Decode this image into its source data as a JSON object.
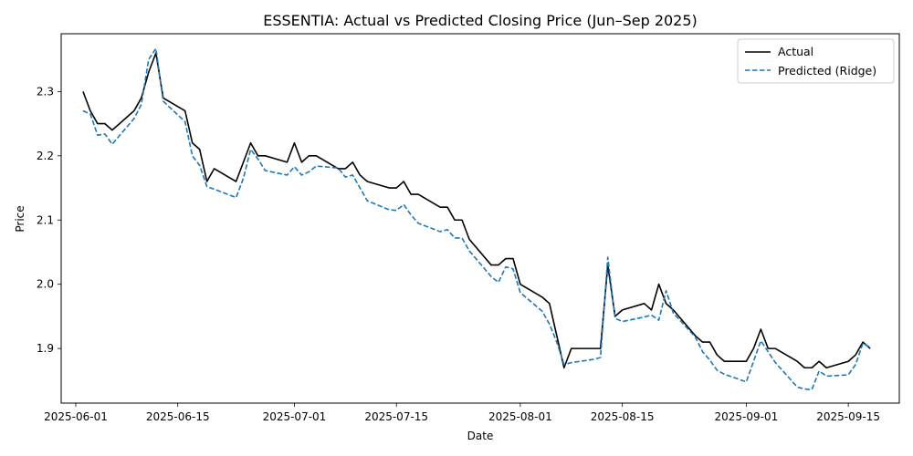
{
  "chart_data": {
    "type": "line",
    "title": "ESSENTIA: Actual vs Predicted Closing Price (Jun–Sep 2025)",
    "xlabel": "Date",
    "ylabel": "Price",
    "x_tick_labels": [
      "2025-06-01",
      "2025-06-15",
      "2025-07-01",
      "2025-07-15",
      "2025-08-01",
      "2025-08-15",
      "2025-09-01",
      "2025-09-15"
    ],
    "y_tick_labels": [
      "1.9",
      "2.0",
      "2.1",
      "2.2",
      "2.3"
    ],
    "ylim": [
      1.815,
      2.39
    ],
    "xlim": [
      "2025-05-30",
      "2025-09-22"
    ],
    "legend_position": "top-right",
    "colors": {
      "actual": "#000000",
      "predicted": "#1f77b4"
    },
    "series": [
      {
        "name": "Actual",
        "style": "solid",
        "points": [
          [
            "2025-06-02",
            2.3
          ],
          [
            "2025-06-03",
            2.27
          ],
          [
            "2025-06-04",
            2.25
          ],
          [
            "2025-06-05",
            2.25
          ],
          [
            "2025-06-06",
            2.24
          ],
          [
            "2025-06-09",
            2.27
          ],
          [
            "2025-06-10",
            2.29
          ],
          [
            "2025-06-11",
            2.33
          ],
          [
            "2025-06-12",
            2.36
          ],
          [
            "2025-06-13",
            2.29
          ],
          [
            "2025-06-16",
            2.27
          ],
          [
            "2025-06-17",
            2.22
          ],
          [
            "2025-06-18",
            2.21
          ],
          [
            "2025-06-19",
            2.16
          ],
          [
            "2025-06-20",
            2.18
          ],
          [
            "2025-06-23",
            2.16
          ],
          [
            "2025-06-24",
            2.19
          ],
          [
            "2025-06-25",
            2.22
          ],
          [
            "2025-06-26",
            2.2
          ],
          [
            "2025-06-27",
            2.2
          ],
          [
            "2025-06-30",
            2.19
          ],
          [
            "2025-07-01",
            2.22
          ],
          [
            "2025-07-02",
            2.19
          ],
          [
            "2025-07-03",
            2.2
          ],
          [
            "2025-07-04",
            2.2
          ],
          [
            "2025-07-07",
            2.18
          ],
          [
            "2025-07-08",
            2.18
          ],
          [
            "2025-07-09",
            2.19
          ],
          [
            "2025-07-10",
            2.17
          ],
          [
            "2025-07-11",
            2.16
          ],
          [
            "2025-07-14",
            2.15
          ],
          [
            "2025-07-15",
            2.15
          ],
          [
            "2025-07-16",
            2.16
          ],
          [
            "2025-07-17",
            2.14
          ],
          [
            "2025-07-18",
            2.14
          ],
          [
            "2025-07-21",
            2.12
          ],
          [
            "2025-07-22",
            2.12
          ],
          [
            "2025-07-23",
            2.1
          ],
          [
            "2025-07-24",
            2.1
          ],
          [
            "2025-07-25",
            2.07
          ],
          [
            "2025-07-28",
            2.03
          ],
          [
            "2025-07-29",
            2.03
          ],
          [
            "2025-07-30",
            2.04
          ],
          [
            "2025-07-31",
            2.04
          ],
          [
            "2025-08-01",
            2.0
          ],
          [
            "2025-08-04",
            1.98
          ],
          [
            "2025-08-05",
            1.97
          ],
          [
            "2025-08-06",
            1.92
          ],
          [
            "2025-08-07",
            1.87
          ],
          [
            "2025-08-08",
            1.9
          ],
          [
            "2025-08-11",
            1.9
          ],
          [
            "2025-08-12",
            1.9
          ],
          [
            "2025-08-13",
            2.03
          ],
          [
            "2025-08-14",
            1.95
          ],
          [
            "2025-08-15",
            1.96
          ],
          [
            "2025-08-18",
            1.97
          ],
          [
            "2025-08-19",
            1.96
          ],
          [
            "2025-08-20",
            2.0
          ],
          [
            "2025-08-21",
            1.97
          ],
          [
            "2025-08-22",
            1.96
          ],
          [
            "2025-08-25",
            1.92
          ],
          [
            "2025-08-26",
            1.91
          ],
          [
            "2025-08-27",
            1.91
          ],
          [
            "2025-08-28",
            1.89
          ],
          [
            "2025-08-29",
            1.88
          ],
          [
            "2025-09-01",
            1.88
          ],
          [
            "2025-09-02",
            1.9
          ],
          [
            "2025-09-03",
            1.93
          ],
          [
            "2025-09-04",
            1.9
          ],
          [
            "2025-09-05",
            1.9
          ],
          [
            "2025-09-08",
            1.88
          ],
          [
            "2025-09-09",
            1.87
          ],
          [
            "2025-09-10",
            1.87
          ],
          [
            "2025-09-11",
            1.88
          ],
          [
            "2025-09-12",
            1.87
          ],
          [
            "2025-09-15",
            1.88
          ],
          [
            "2025-09-16",
            1.89
          ],
          [
            "2025-09-17",
            1.91
          ],
          [
            "2025-09-18",
            1.9
          ]
        ]
      },
      {
        "name": "Predicted (Ridge)",
        "style": "dashed",
        "points": [
          [
            "2025-06-02",
            2.27
          ],
          [
            "2025-06-03",
            2.265
          ],
          [
            "2025-06-04",
            2.232
          ],
          [
            "2025-06-05",
            2.234
          ],
          [
            "2025-06-06",
            2.218
          ],
          [
            "2025-06-09",
            2.258
          ],
          [
            "2025-06-10",
            2.28
          ],
          [
            "2025-06-11",
            2.35
          ],
          [
            "2025-06-12",
            2.367
          ],
          [
            "2025-06-13",
            2.285
          ],
          [
            "2025-06-16",
            2.253
          ],
          [
            "2025-06-17",
            2.2
          ],
          [
            "2025-06-18",
            2.185
          ],
          [
            "2025-06-19",
            2.152
          ],
          [
            "2025-06-20",
            2.148
          ],
          [
            "2025-06-23",
            2.135
          ],
          [
            "2025-06-24",
            2.165
          ],
          [
            "2025-06-25",
            2.21
          ],
          [
            "2025-06-26",
            2.195
          ],
          [
            "2025-06-27",
            2.177
          ],
          [
            "2025-06-30",
            2.17
          ],
          [
            "2025-07-01",
            2.183
          ],
          [
            "2025-07-02",
            2.17
          ],
          [
            "2025-07-03",
            2.175
          ],
          [
            "2025-07-04",
            2.184
          ],
          [
            "2025-07-07",
            2.181
          ],
          [
            "2025-07-08",
            2.167
          ],
          [
            "2025-07-09",
            2.17
          ],
          [
            "2025-07-10",
            2.15
          ],
          [
            "2025-07-11",
            2.13
          ],
          [
            "2025-07-14",
            2.116
          ],
          [
            "2025-07-15",
            2.115
          ],
          [
            "2025-07-16",
            2.124
          ],
          [
            "2025-07-17",
            2.108
          ],
          [
            "2025-07-18",
            2.095
          ],
          [
            "2025-07-21",
            2.082
          ],
          [
            "2025-07-22",
            2.085
          ],
          [
            "2025-07-23",
            2.072
          ],
          [
            "2025-07-24",
            2.072
          ],
          [
            "2025-07-25",
            2.052
          ],
          [
            "2025-07-28",
            2.012
          ],
          [
            "2025-07-29",
            2.003
          ],
          [
            "2025-07-30",
            2.027
          ],
          [
            "2025-07-31",
            2.024
          ],
          [
            "2025-08-01",
            1.987
          ],
          [
            "2025-08-04",
            1.958
          ],
          [
            "2025-08-05",
            1.938
          ],
          [
            "2025-08-06",
            1.91
          ],
          [
            "2025-08-07",
            1.875
          ],
          [
            "2025-08-08",
            1.878
          ],
          [
            "2025-08-11",
            1.883
          ],
          [
            "2025-08-12",
            1.886
          ],
          [
            "2025-08-13",
            2.042
          ],
          [
            "2025-08-14",
            1.947
          ],
          [
            "2025-08-15",
            1.942
          ],
          [
            "2025-08-18",
            1.949
          ],
          [
            "2025-08-19",
            1.952
          ],
          [
            "2025-08-20",
            1.944
          ],
          [
            "2025-08-21",
            1.99
          ],
          [
            "2025-08-22",
            1.955
          ],
          [
            "2025-08-25",
            1.918
          ],
          [
            "2025-08-26",
            1.895
          ],
          [
            "2025-08-27",
            1.882
          ],
          [
            "2025-08-28",
            1.866
          ],
          [
            "2025-08-29",
            1.86
          ],
          [
            "2025-09-01",
            1.848
          ],
          [
            "2025-09-02",
            1.88
          ],
          [
            "2025-09-03",
            1.912
          ],
          [
            "2025-09-04",
            1.895
          ],
          [
            "2025-09-05",
            1.878
          ],
          [
            "2025-09-08",
            1.84
          ],
          [
            "2025-09-09",
            1.837
          ],
          [
            "2025-09-10",
            1.836
          ],
          [
            "2025-09-11",
            1.865
          ],
          [
            "2025-09-12",
            1.857
          ],
          [
            "2025-09-15",
            1.859
          ],
          [
            "2025-09-16",
            1.875
          ],
          [
            "2025-09-17",
            1.908
          ],
          [
            "2025-09-18",
            1.902
          ]
        ]
      }
    ]
  }
}
